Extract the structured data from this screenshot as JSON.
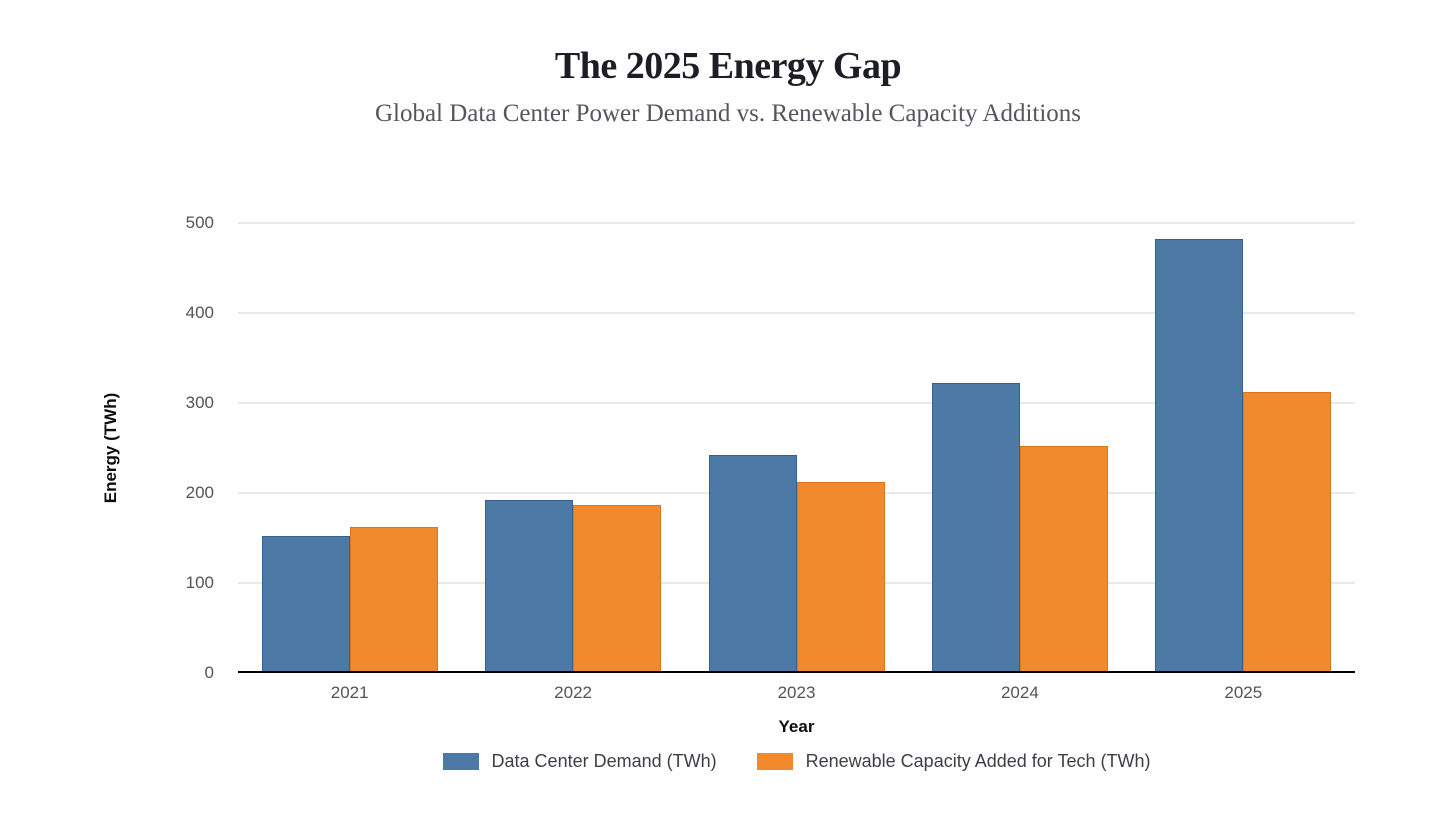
{
  "header": {
    "title": "The 2025 Energy Gap",
    "subtitle": "Global Data Center Power Demand vs. Renewable Capacity Additions"
  },
  "chart_data": {
    "type": "bar",
    "title": "The 2025 Energy Gap",
    "subtitle": "Global Data Center Power Demand vs. Renewable Capacity Additions",
    "categories": [
      "2021",
      "2022",
      "2023",
      "2024",
      "2025"
    ],
    "series": [
      {
        "name": "Data Center Demand (TWh)",
        "values": [
          150,
          190,
          240,
          320,
          480
        ],
        "color": "#4d79a6",
        "border_color": "#36618e"
      },
      {
        "name": "Renewable Capacity Added for Tech (TWh)",
        "values": [
          160,
          185,
          210,
          250,
          310
        ],
        "color": "#f18a2d",
        "border_color": "#db7619"
      }
    ],
    "xlabel": "Year",
    "ylabel": "Energy (TWh)",
    "ylim": [
      0,
      500
    ],
    "yticks": [
      0,
      100,
      200,
      300,
      400,
      500
    ],
    "grid": true,
    "legend_position": "bottom",
    "background": "#ffffff",
    "gridline_color": "#e9e9ec",
    "axis_line_color": "#000000"
  }
}
